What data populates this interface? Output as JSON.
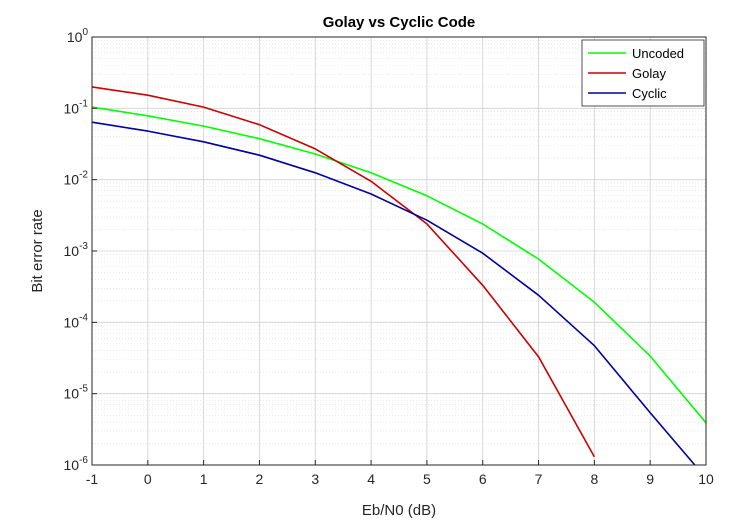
{
  "chart_data": {
    "type": "line",
    "title": "Golay vs Cyclic Code",
    "xlabel": "Eb/N0 (dB)",
    "ylabel": "Bit error rate",
    "xlim": [
      -1,
      10
    ],
    "ylim": [
      1e-06,
      1
    ],
    "yscale": "log",
    "grid": true,
    "minor_grid": true,
    "legend_position": "top-right",
    "x_ticks": [
      -1,
      0,
      1,
      2,
      3,
      4,
      5,
      6,
      7,
      8,
      9,
      10
    ],
    "x_tick_labels": [
      "-1",
      "0",
      "1",
      "2",
      "3",
      "4",
      "5",
      "6",
      "7",
      "8",
      "9",
      "10"
    ],
    "y_ticks": [
      {
        "value": 1e-06,
        "base": "10",
        "exp": "-6"
      },
      {
        "value": 1e-05,
        "base": "10",
        "exp": "-5"
      },
      {
        "value": 0.0001,
        "base": "10",
        "exp": "-4"
      },
      {
        "value": 0.001,
        "base": "10",
        "exp": "-3"
      },
      {
        "value": 0.01,
        "base": "10",
        "exp": "-2"
      },
      {
        "value": 0.1,
        "base": "10",
        "exp": "-1"
      },
      {
        "value": 1,
        "base": "10",
        "exp": "0"
      }
    ],
    "series": [
      {
        "name": "Uncoded",
        "color": "#00ff00",
        "x": [
          -1,
          0,
          1,
          2,
          3,
          4,
          5,
          6,
          7,
          8,
          9,
          10
        ],
        "y": [
          0.104,
          0.0786,
          0.0563,
          0.0375,
          0.0229,
          0.0125,
          0.00595,
          0.00239,
          0.000773,
          0.000191,
          3.36e-05,
          3.9e-06
        ]
      },
      {
        "name": "Golay",
        "color": "#cc0000",
        "x": [
          -1,
          0,
          1,
          2,
          3,
          4,
          5,
          6,
          7,
          8
        ],
        "y": [
          0.2,
          0.153,
          0.104,
          0.059,
          0.027,
          0.0095,
          0.0024,
          0.00033,
          3.3e-05,
          1.3e-06
        ]
      },
      {
        "name": "Cyclic",
        "color": "#0000a0",
        "x": [
          -1,
          0,
          1,
          2,
          3,
          4,
          5,
          6,
          7,
          8,
          9,
          9.8
        ],
        "y": [
          0.064,
          0.048,
          0.034,
          0.022,
          0.0125,
          0.0063,
          0.0027,
          0.00093,
          0.00024,
          4.7e-05,
          5.4e-06,
          1e-06
        ]
      }
    ]
  }
}
